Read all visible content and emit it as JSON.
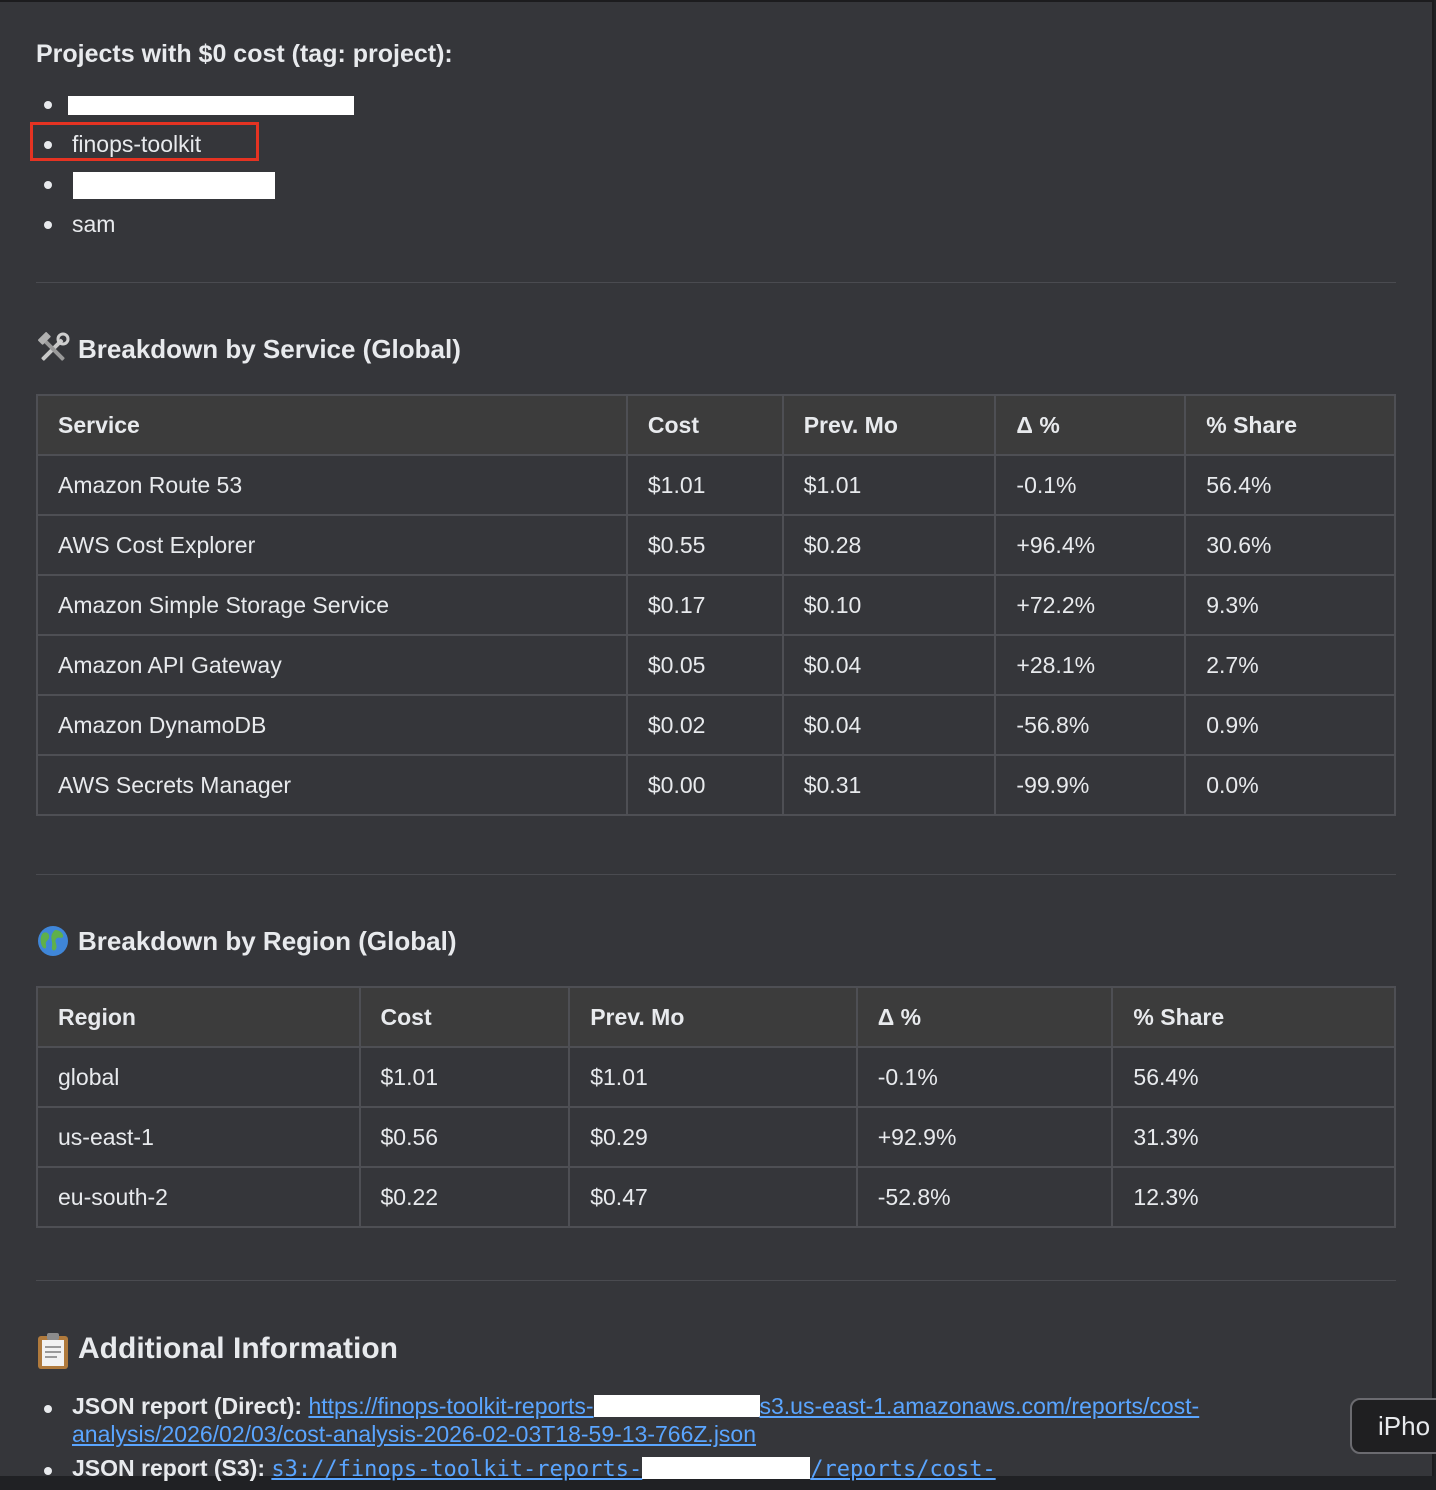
{
  "zero_cost": {
    "title": "Projects with $0 cost (tag: project):",
    "items": [
      {
        "label": "",
        "redacted": true
      },
      {
        "label": "finops-toolkit",
        "redacted": false,
        "highlighted": true
      },
      {
        "label": "",
        "redacted": true
      },
      {
        "label": "sam",
        "redacted": false
      }
    ]
  },
  "service_section": {
    "title": "Breakdown by Service (Global)",
    "icon": "hammer-and-wrench-icon",
    "headers": [
      "Service",
      "Cost",
      "Prev. Mo",
      "Δ %",
      "% Share"
    ],
    "rows": [
      {
        "name": "Amazon Route 53",
        "cost": "$1.01",
        "prev": "$1.01",
        "delta": "-0.1%",
        "trend": "neutral",
        "share": "56.4%"
      },
      {
        "name": "AWS Cost Explorer",
        "cost": "$0.55",
        "prev": "$0.28",
        "delta": "+96.4%",
        "trend": "up",
        "share": "30.6%"
      },
      {
        "name": "Amazon Simple Storage Service",
        "cost": "$0.17",
        "prev": "$0.10",
        "delta": "+72.2%",
        "trend": "up",
        "share": "9.3%"
      },
      {
        "name": "Amazon API Gateway",
        "cost": "$0.05",
        "prev": "$0.04",
        "delta": "+28.1%",
        "trend": "up",
        "share": "2.7%"
      },
      {
        "name": "Amazon DynamoDB",
        "cost": "$0.02",
        "prev": "$0.04",
        "delta": "-56.8%",
        "trend": "down",
        "share": "0.9%"
      },
      {
        "name": "AWS Secrets Manager",
        "cost": "$0.00",
        "prev": "$0.31",
        "delta": "-99.9%",
        "trend": "down",
        "share": "0.0%"
      }
    ]
  },
  "region_section": {
    "title": "Breakdown by Region (Global)",
    "icon": "globe-icon",
    "headers": [
      "Region",
      "Cost",
      "Prev. Mo",
      "Δ %",
      "% Share"
    ],
    "rows": [
      {
        "name": "global",
        "cost": "$1.01",
        "prev": "$1.01",
        "delta": "-0.1%",
        "trend": "neutral",
        "share": "56.4%"
      },
      {
        "name": "us-east-1",
        "cost": "$0.56",
        "prev": "$0.29",
        "delta": "+92.9%",
        "trend": "up",
        "share": "31.3%"
      },
      {
        "name": "eu-south-2",
        "cost": "$0.22",
        "prev": "$0.47",
        "delta": "-52.8%",
        "trend": "down",
        "share": "12.3%"
      }
    ]
  },
  "info_section": {
    "title": "Additional Information",
    "icon": "clipboard-icon",
    "json_direct_label": "JSON report (Direct):",
    "json_direct_link_a": "https://finops-toolkit-reports-",
    "json_direct_link_b": "s3.us-east-1.amazonaws.com/reports/cost-",
    "json_direct_link_c": "analysis/2026/02/03/cost-analysis-2026-02-03T18-59-13-766Z.json",
    "json_s3_label": "JSON report (S3):",
    "json_s3_link_a": "s3://finops-toolkit-reports-",
    "json_s3_link_b": "/reports/cost-"
  },
  "floating_button": {
    "label": "iPho"
  },
  "colors": {
    "up": "#e8413c",
    "down": "#3ddc97",
    "neutral": "#9aa0a6",
    "link": "#5aa5ff",
    "highlight": "#e53322"
  }
}
